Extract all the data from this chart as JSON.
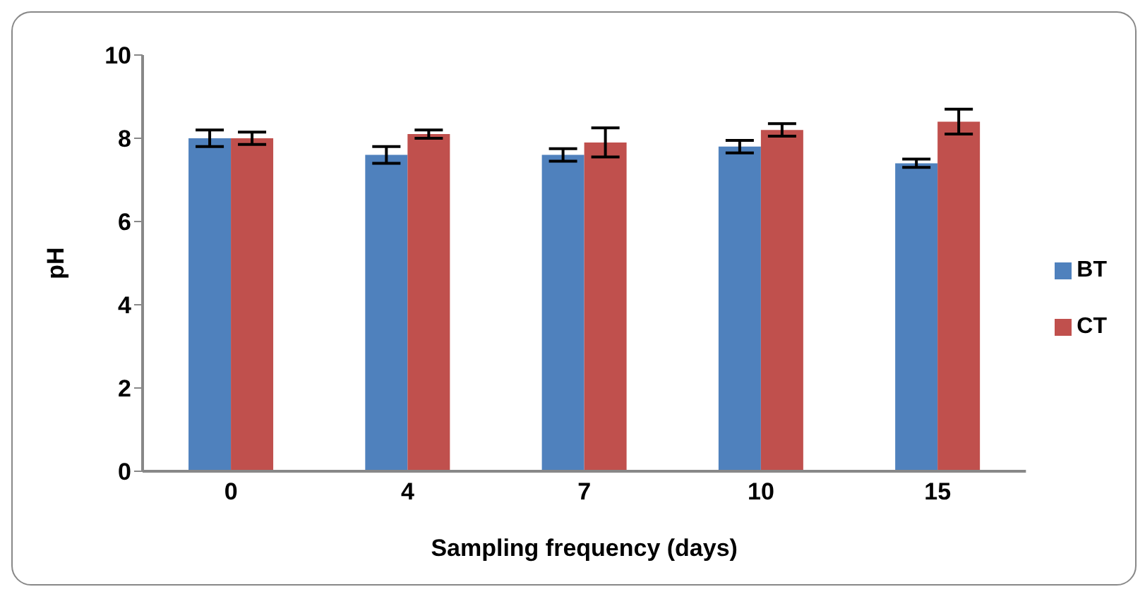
{
  "chart_data": {
    "type": "bar",
    "xlabel": "Sampling frequency (days)",
    "ylabel": "pH",
    "categories": [
      "0",
      "4",
      "7",
      "10",
      "15"
    ],
    "series": [
      {
        "name": "BT",
        "color": "#4f81bd",
        "values": [
          8.0,
          7.6,
          7.6,
          7.8,
          7.4
        ],
        "errors": [
          0.2,
          0.2,
          0.15,
          0.15,
          0.1
        ]
      },
      {
        "name": "CT",
        "color": "#c0504d",
        "values": [
          8.0,
          8.1,
          7.9,
          8.2,
          8.4
        ],
        "errors": [
          0.15,
          0.1,
          0.35,
          0.15,
          0.3
        ]
      }
    ],
    "ylim": [
      0,
      10
    ],
    "yticks": [
      0,
      2,
      4,
      6,
      8,
      10
    ],
    "grid": false,
    "legend": "right"
  }
}
